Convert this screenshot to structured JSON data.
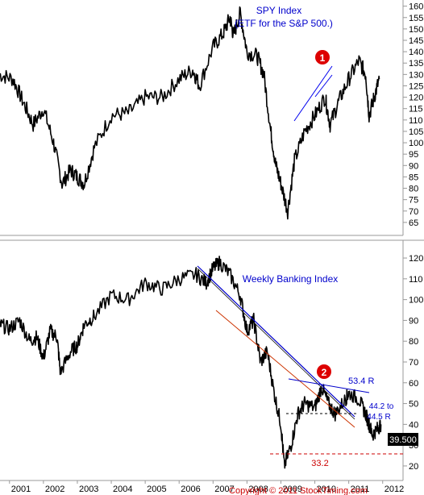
{
  "chart_data": [
    {
      "type": "line",
      "title": "SPY Index",
      "subtitle": "(ETF for the S&P 500.)",
      "ylim": [
        60,
        162
      ],
      "yticks": [
        65,
        70,
        75,
        80,
        85,
        90,
        95,
        100,
        105,
        110,
        115,
        120,
        125,
        130,
        135,
        140,
        145,
        150,
        155,
        160
      ],
      "annotations": [
        {
          "label": "1"
        }
      ],
      "series": [
        {
          "x": [
            2000.7,
            2001.1,
            2001.4,
            2001.7,
            2002.0,
            2002.3,
            2002.55,
            2002.8,
            2003.0,
            2003.2,
            2003.5,
            2004.0,
            2004.5,
            2005.0,
            2005.5,
            2006.0,
            2006.4,
            2006.6,
            2007.0,
            2007.3,
            2007.5,
            2007.6,
            2007.8,
            2008.0,
            2008.3,
            2008.5,
            2008.7,
            2008.85,
            2009.0,
            2009.2,
            2009.4,
            2009.7,
            2010.0,
            2010.3,
            2010.45,
            2010.7,
            2011.0,
            2011.3,
            2011.5,
            2011.6,
            2011.75,
            2011.9
          ],
          "values": [
            130,
            128,
            118,
            108,
            115,
            100,
            82,
            88,
            85,
            82,
            98,
            112,
            113,
            120,
            120,
            128,
            132,
            125,
            142,
            148,
            155,
            147,
            157,
            140,
            138,
            130,
            105,
            90,
            82,
            70,
            92,
            105,
            112,
            120,
            108,
            118,
            128,
            136,
            130,
            112,
            120,
            128
          ]
        }
      ]
    },
    {
      "type": "line",
      "title": "Weekly Banking Index",
      "ylim": [
        13,
        127
      ],
      "yticks": [
        20,
        30,
        40,
        50,
        60,
        70,
        80,
        90,
        100,
        110,
        120
      ],
      "categories": [
        "2001",
        "2002",
        "2003",
        "2004",
        "2005",
        "2006",
        "2007",
        "2008",
        "2009",
        "2010",
        "2011",
        "2012"
      ],
      "annotations": [
        {
          "label": "2"
        },
        {
          "label": "53.4 R"
        },
        {
          "label": "44.2 to"
        },
        {
          "label": "44.5 R"
        },
        {
          "label": "33.2"
        }
      ],
      "last_value": "39.500",
      "series": [
        {
          "x": [
            2000.7,
            2001.0,
            2001.3,
            2001.6,
            2001.8,
            2002.0,
            2002.2,
            2002.4,
            2002.5,
            2002.8,
            2003.0,
            2003.2,
            2003.5,
            2004.0,
            2004.5,
            2005.0,
            2005.5,
            2006.0,
            2006.5,
            2006.8,
            2007.0,
            2007.2,
            2007.5,
            2007.8,
            2008.0,
            2008.2,
            2008.4,
            2008.6,
            2008.8,
            2009.0,
            2009.1,
            2009.3,
            2009.5,
            2009.7,
            2010.0,
            2010.2,
            2010.4,
            2010.6,
            2010.9,
            2011.0,
            2011.3,
            2011.5,
            2011.6,
            2011.7,
            2011.85,
            2011.95
          ],
          "values": [
            88,
            86,
            90,
            80,
            82,
            72,
            85,
            82,
            65,
            75,
            78,
            88,
            92,
            102,
            100,
            108,
            105,
            110,
            112,
            108,
            115,
            118,
            112,
            102,
            85,
            90,
            70,
            75,
            55,
            40,
            20,
            30,
            45,
            50,
            48,
            58,
            50,
            45,
            52,
            55,
            52,
            45,
            40,
            35,
            38,
            40
          ]
        }
      ]
    }
  ],
  "copyright": "Copyright © 2011 StockTiming.com"
}
